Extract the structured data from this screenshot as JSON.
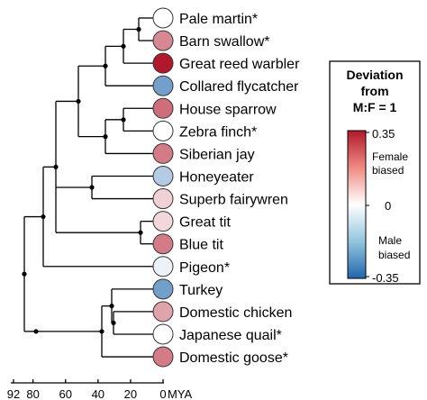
{
  "tree": {
    "species": [
      {
        "name": "Pale martin*",
        "deviation": 0.0
      },
      {
        "name": "Barn swallow*",
        "deviation": 0.18
      },
      {
        "name": "Great reed warbler",
        "deviation": 0.35
      },
      {
        "name": "Collared flycatcher",
        "deviation": -0.22
      },
      {
        "name": "House sparrow",
        "deviation": 0.22
      },
      {
        "name": "Zebra finch*",
        "deviation": 0.0
      },
      {
        "name": "Siberian jay",
        "deviation": 0.2
      },
      {
        "name": "Honeyeater",
        "deviation": -0.12
      },
      {
        "name": "Superb fairywren",
        "deviation": 0.07
      },
      {
        "name": "Great tit",
        "deviation": 0.06
      },
      {
        "name": "Blue tit",
        "deviation": 0.2
      },
      {
        "name": "Pigeon*",
        "deviation": -0.03
      },
      {
        "name": "Turkey",
        "deviation": -0.22
      },
      {
        "name": "Domestic chicken",
        "deviation": 0.14
      },
      {
        "name": "Japanese quail*",
        "deviation": 0.0
      },
      {
        "name": "Domestic goose*",
        "deviation": 0.2
      }
    ]
  },
  "axis": {
    "ticks": [
      92,
      80,
      60,
      40,
      20,
      0
    ],
    "unit": "MYA"
  },
  "legend": {
    "title_lines": [
      "Deviation",
      "from",
      "M:F = 1"
    ],
    "max_label": "0.35",
    "mid_label": "0",
    "min_label": "-0.35",
    "female_lines": [
      "Female",
      "biased"
    ],
    "male_lines": [
      "Male",
      "biased"
    ],
    "colors": {
      "female": "#b2182b",
      "neutral": "#ffffff",
      "male": "#2166ac"
    }
  }
}
